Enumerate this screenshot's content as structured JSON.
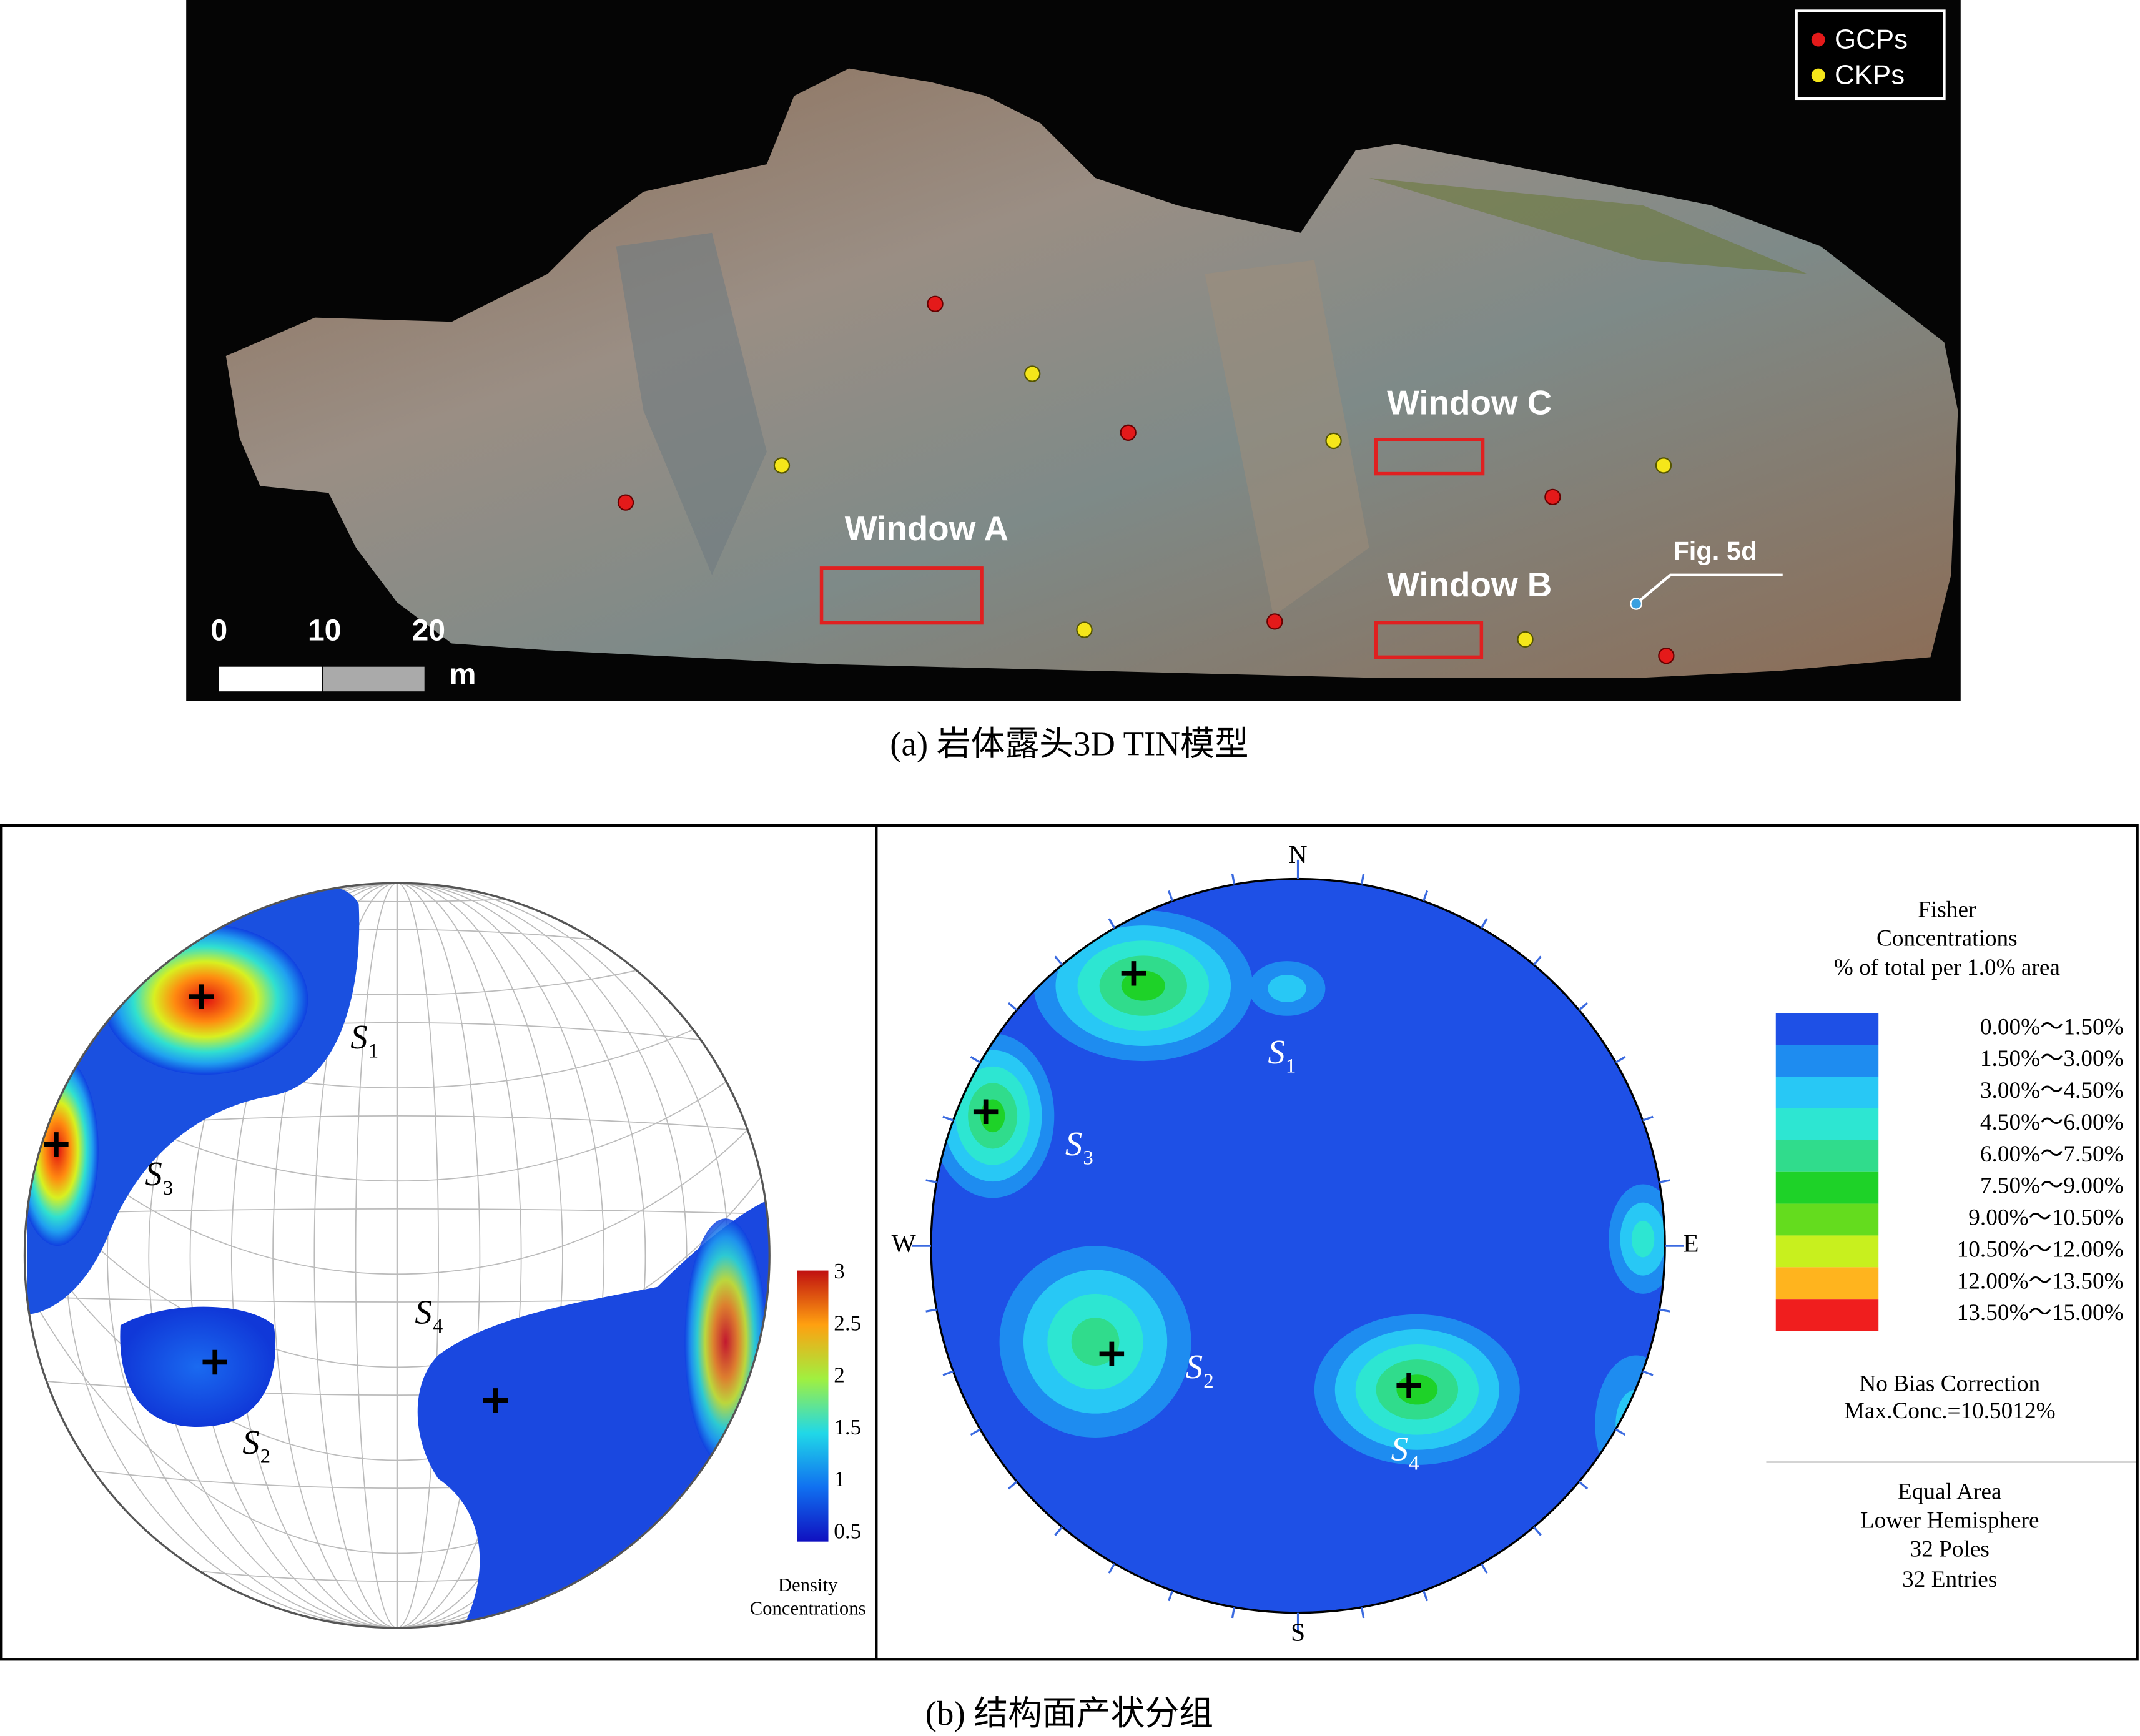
{
  "panel_a": {
    "legend": [
      "GCPs",
      "CKPs"
    ],
    "windows": [
      "Window A",
      "Window B",
      "Window C"
    ],
    "figure_ref": "Fig. 5d",
    "scale_ticks": [
      "0",
      "10",
      "20"
    ],
    "scale_unit": "m",
    "caption": "(a) 岩体露头3D TIN模型"
  },
  "panel_b": {
    "left": {
      "sets": [
        {
          "letter": "S",
          "sub": "1"
        },
        {
          "letter": "S",
          "sub": "2"
        },
        {
          "letter": "S",
          "sub": "3"
        },
        {
          "letter": "S",
          "sub": "4"
        }
      ],
      "colorbar_ticks": [
        "3",
        "2.5",
        "2",
        "1.5",
        "1",
        "0.5"
      ],
      "colorbar_title": [
        "Density",
        "Concentrations"
      ]
    },
    "right": {
      "compass": [
        "N",
        "E",
        "S",
        "W"
      ],
      "sets": [
        {
          "letter": "S",
          "sub": "1"
        },
        {
          "letter": "S",
          "sub": "2"
        },
        {
          "letter": "S",
          "sub": "3"
        },
        {
          "letter": "S",
          "sub": "4"
        }
      ],
      "legend_title": [
        "Fisher",
        "Concentrations",
        "% of total per 1.0% area"
      ],
      "legend": [
        {
          "label": "0.00%～1.50%",
          "color": "#1e50e6"
        },
        {
          "label": "1.50%～3.00%",
          "color": "#1e8cf0"
        },
        {
          "label": "3.00%～4.50%",
          "color": "#28c8f5"
        },
        {
          "label": "4.50%～6.00%",
          "color": "#2de6d2"
        },
        {
          "label": "6.00%～7.50%",
          "color": "#30dc8c"
        },
        {
          "label": "7.50%～9.00%",
          "color": "#1ed228"
        },
        {
          "label": "9.00%～10.50%",
          "color": "#64dc1e"
        },
        {
          "label": "10.50%～12.00%",
          "color": "#c8f01e"
        },
        {
          "label": "12.00%～13.50%",
          "color": "#ffb41e"
        },
        {
          "label": "13.50%～15.00%",
          "color": "#f01e1e"
        }
      ],
      "notes": [
        "No Bias Correction",
        "Max.Conc.=10.5012%"
      ],
      "info": [
        "Equal Area",
        "Lower Hemisphere",
        "32 Poles",
        "32 Entries"
      ]
    },
    "caption": "(b) 结构面产状分组"
  }
}
